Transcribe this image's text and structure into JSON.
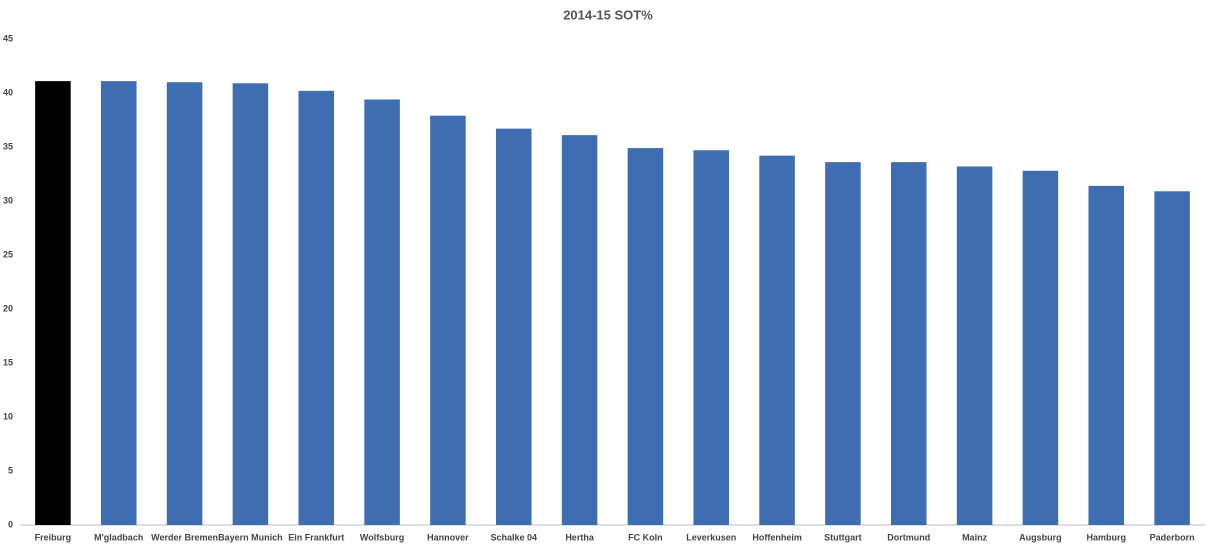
{
  "chart_data": {
    "type": "bar",
    "title": "2014-15 SOT%",
    "categories": [
      "Freiburg",
      "M'gladbach",
      "Werder Bremen",
      "Bayern Munich",
      "Ein Frankfurt",
      "Wolfsburg",
      "Hannover",
      "Schalke 04",
      "Hertha",
      "FC Koln",
      "Leverkusen",
      "Hoffenheim",
      "Stuttgart",
      "Dortmund",
      "Mainz",
      "Augsburg",
      "Hamburg",
      "Paderborn"
    ],
    "values": [
      41.1,
      41.1,
      41.0,
      40.9,
      40.2,
      39.4,
      37.9,
      36.7,
      36.1,
      34.9,
      34.7,
      34.2,
      33.6,
      33.6,
      33.2,
      32.8,
      31.4,
      30.9
    ],
    "colors": [
      "#000000",
      "#3f6db2",
      "#3f6db2",
      "#3f6db2",
      "#3f6db2",
      "#3f6db2",
      "#3f6db2",
      "#3f6db2",
      "#3f6db2",
      "#3f6db2",
      "#3f6db2",
      "#3f6db2",
      "#3f6db2",
      "#3f6db2",
      "#3f6db2",
      "#3f6db2",
      "#3f6db2",
      "#3f6db2"
    ],
    "ylim": [
      0,
      45
    ],
    "yticks": [
      0,
      5,
      10,
      15,
      20,
      25,
      30,
      35,
      40,
      45
    ],
    "grid": false
  }
}
